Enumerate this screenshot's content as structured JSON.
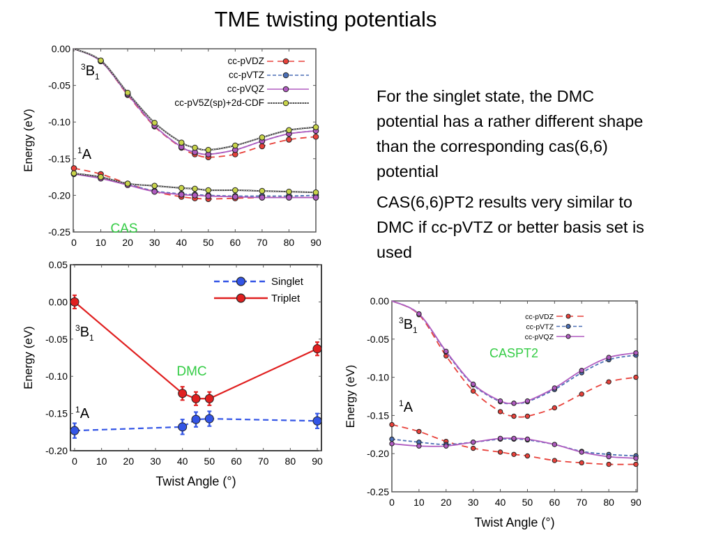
{
  "slide": {
    "title": "TME twisting potentials",
    "bullets": [
      "For the singlet state, the DMC potential has a rather different shape than the corresponding cas(6,6) potential",
      "CAS(6,6)PT2 results very similar to DMC if cc-pVTZ or better basis set is used"
    ]
  },
  "chart_data": [
    {
      "id": "cas",
      "type": "line",
      "title": "",
      "annotation": "CAS",
      "annotation_color": "#33cc44",
      "state_labels": [
        "3B1",
        "1A"
      ],
      "xlabel": "",
      "ylabel": "Energy (eV)",
      "xlim": [
        0,
        90
      ],
      "ylim": [
        -0.25,
        0.0
      ],
      "xticks": [
        "0",
        "10",
        "20",
        "30",
        "40",
        "50",
        "60",
        "70",
        "80",
        "90"
      ],
      "yticks": [
        "0.00",
        "-0.05",
        "-0.10",
        "-0.15",
        "-0.20",
        "-0.25"
      ],
      "legend_position": "top-right",
      "x": [
        0,
        10,
        20,
        30,
        40,
        45,
        50,
        60,
        70,
        80,
        90
      ],
      "series": [
        {
          "name": "cc-pVDZ",
          "state": "3B1",
          "color": "#e8413a",
          "dash": "long",
          "values": [
            0.0,
            -0.017,
            -0.063,
            -0.106,
            -0.135,
            -0.144,
            -0.148,
            -0.144,
            -0.133,
            -0.124,
            -0.12
          ]
        },
        {
          "name": "cc-pVTZ",
          "state": "3B1",
          "color": "#4b6fb5",
          "dash": "short",
          "values": [
            0.0,
            -0.017,
            -0.062,
            -0.105,
            -0.134,
            -0.141,
            -0.144,
            -0.138,
            -0.126,
            -0.116,
            -0.112
          ]
        },
        {
          "name": "cc-pVQZ",
          "state": "3B1",
          "color": "#b05bc0",
          "dash": "solid",
          "values": [
            0.0,
            -0.017,
            -0.062,
            -0.105,
            -0.134,
            -0.141,
            -0.144,
            -0.138,
            -0.126,
            -0.116,
            -0.112
          ]
        },
        {
          "name": "cc-pV5Z(sp)+2d-CDF",
          "state": "3B1",
          "color": "#c8d44a",
          "dash": "dotted",
          "values": [
            0.0,
            -0.016,
            -0.06,
            -0.101,
            -0.128,
            -0.135,
            -0.138,
            -0.132,
            -0.121,
            -0.111,
            -0.107
          ]
        },
        {
          "name": "cc-pVDZ",
          "state": "1A",
          "color": "#e8413a",
          "dash": "long",
          "values": [
            -0.163,
            -0.171,
            -0.184,
            -0.195,
            -0.202,
            -0.204,
            -0.205,
            -0.204,
            -0.203,
            -0.203,
            -0.203
          ]
        },
        {
          "name": "cc-pVTZ",
          "state": "1A",
          "color": "#4b6fb5",
          "dash": "short",
          "values": [
            -0.17,
            -0.176,
            -0.185,
            -0.194,
            -0.198,
            -0.199,
            -0.2,
            -0.201,
            -0.201,
            -0.201,
            -0.2
          ]
        },
        {
          "name": "cc-pVQZ",
          "state": "1A",
          "color": "#b05bc0",
          "dash": "solid",
          "values": [
            -0.171,
            -0.177,
            -0.186,
            -0.195,
            -0.199,
            -0.2,
            -0.201,
            -0.202,
            -0.203,
            -0.203,
            -0.203
          ]
        },
        {
          "name": "cc-pV5Z(sp)+2d-CDF",
          "state": "1A",
          "color": "#c8d44a",
          "dash": "dotted",
          "values": [
            -0.17,
            -0.175,
            -0.184,
            -0.187,
            -0.19,
            -0.191,
            -0.193,
            -0.193,
            -0.194,
            -0.195,
            -0.196
          ]
        }
      ]
    },
    {
      "id": "dmc",
      "type": "line",
      "title": "",
      "annotation": "DMC",
      "annotation_color": "#33cc44",
      "state_labels": [
        "3B1",
        "1A"
      ],
      "xlabel": "Twist Angle (°)",
      "ylabel": "Energy (eV)",
      "xlim": [
        0,
        90
      ],
      "ylim": [
        -0.2,
        0.05
      ],
      "xticks": [
        "0",
        "10",
        "20",
        "30",
        "40",
        "50",
        "60",
        "70",
        "80",
        "90"
      ],
      "yticks": [
        "0.05",
        "0.00",
        "-0.05",
        "-0.10",
        "-0.15",
        "-0.20"
      ],
      "legend_position": "top-right",
      "x": [
        0,
        40,
        45,
        50,
        90
      ],
      "series": [
        {
          "name": "Singlet",
          "color": "#3355e6",
          "dash": "dashed",
          "values": [
            -0.173,
            -0.168,
            -0.158,
            -0.157,
            -0.16
          ],
          "errors": [
            0.01,
            0.01,
            0.01,
            0.01,
            0.01
          ]
        },
        {
          "name": "Triplet",
          "color": "#e01f1f",
          "dash": "solid",
          "values": [
            0.0,
            -0.123,
            -0.13,
            -0.13,
            -0.063
          ],
          "errors": [
            0.009,
            0.009,
            0.009,
            0.009,
            0.009
          ]
        }
      ]
    },
    {
      "id": "caspt2",
      "type": "line",
      "title": "",
      "annotation": "CASPT2",
      "annotation_color": "#33cc44",
      "state_labels": [
        "3B1",
        "1A"
      ],
      "xlabel": "Twist Angle (°)",
      "ylabel": "Energy (eV)",
      "xlim": [
        0,
        90
      ],
      "ylim": [
        -0.25,
        0.0
      ],
      "xticks": [
        "0",
        "10",
        "20",
        "30",
        "40",
        "50",
        "60",
        "70",
        "80",
        "90"
      ],
      "yticks": [
        "0.00",
        "-0.05",
        "-0.10",
        "-0.15",
        "-0.20",
        "-0.25"
      ],
      "legend_position": "top-right",
      "x": [
        0,
        10,
        20,
        30,
        40,
        45,
        50,
        60,
        70,
        80,
        90
      ],
      "series": [
        {
          "name": "cc-pVDZ",
          "state": "3B1",
          "color": "#e8413a",
          "dash": "long",
          "values": [
            0.0,
            -0.018,
            -0.072,
            -0.118,
            -0.145,
            -0.151,
            -0.151,
            -0.14,
            -0.122,
            -0.106,
            -0.1
          ]
        },
        {
          "name": "cc-pVTZ",
          "state": "3B1",
          "color": "#4b6fb5",
          "dash": "short",
          "values": [
            0.0,
            -0.017,
            -0.067,
            -0.11,
            -0.132,
            -0.134,
            -0.132,
            -0.116,
            -0.094,
            -0.077,
            -0.071
          ]
        },
        {
          "name": "cc-pVQZ",
          "state": "3B1",
          "color": "#b05bc0",
          "dash": "solid",
          "values": [
            0.0,
            -0.017,
            -0.066,
            -0.109,
            -0.131,
            -0.134,
            -0.131,
            -0.114,
            -0.091,
            -0.074,
            -0.068
          ]
        },
        {
          "name": "cc-pVDZ",
          "state": "1A",
          "color": "#e8413a",
          "dash": "long",
          "values": [
            -0.162,
            -0.171,
            -0.184,
            -0.193,
            -0.198,
            -0.201,
            -0.203,
            -0.209,
            -0.212,
            -0.214,
            -0.214
          ]
        },
        {
          "name": "cc-pVTZ",
          "state": "1A",
          "color": "#4b6fb5",
          "dash": "short",
          "values": [
            -0.181,
            -0.185,
            -0.188,
            -0.185,
            -0.181,
            -0.181,
            -0.182,
            -0.188,
            -0.197,
            -0.201,
            -0.203
          ]
        },
        {
          "name": "cc-pVQZ",
          "state": "1A",
          "color": "#b05bc0",
          "dash": "solid",
          "values": [
            -0.187,
            -0.19,
            -0.19,
            -0.185,
            -0.18,
            -0.18,
            -0.181,
            -0.188,
            -0.198,
            -0.204,
            -0.206
          ]
        }
      ]
    }
  ]
}
